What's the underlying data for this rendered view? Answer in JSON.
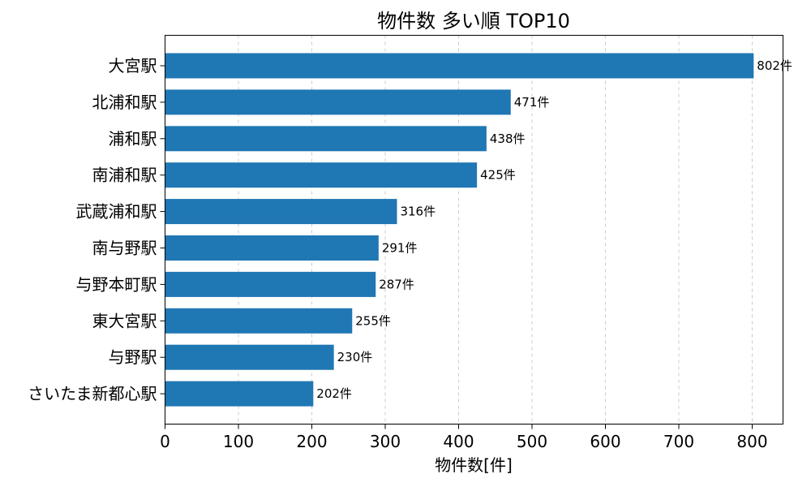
{
  "chart_data": {
    "type": "bar",
    "orientation": "horizontal",
    "title": "物件数 多い順 TOP10",
    "xlabel": "物件数[件]",
    "ylabel": "",
    "categories": [
      "大宮駅",
      "北浦和駅",
      "浦和駅",
      "南浦和駅",
      "武蔵浦和駅",
      "南与野駅",
      "与野本町駅",
      "東大宮駅",
      "与野駅",
      "さいたま新都心駅"
    ],
    "values": [
      802,
      471,
      438,
      425,
      316,
      291,
      287,
      255,
      230,
      202
    ],
    "data_labels": [
      "802件",
      "471件",
      "438件",
      "425件",
      "316件",
      "291件",
      "287件",
      "255件",
      "230件",
      "202件"
    ],
    "xlim": [
      0,
      842
    ],
    "xticks": [
      0,
      100,
      200,
      300,
      400,
      500,
      600,
      700,
      800
    ],
    "grid": "x-dashed",
    "bar_color": "#1f77b4"
  }
}
